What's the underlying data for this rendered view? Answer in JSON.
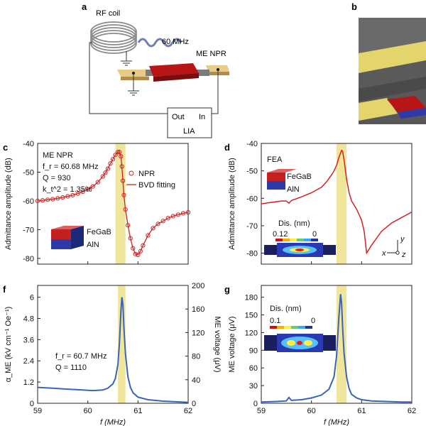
{
  "panel_letters": {
    "a": "a",
    "b": "b",
    "c": "c",
    "d": "d",
    "f": "f",
    "g": "g"
  },
  "schematic_a": {
    "rf_coil": "RF coil",
    "freq": "60 MHz",
    "device": "ME NPR",
    "lia_out": "Out",
    "lia_in": "In",
    "lia": "LIA",
    "colors": {
      "electrode": "#d9b870",
      "resonator": "#b81616",
      "coil": "#999999",
      "wave": "#6f7fb5"
    }
  },
  "panel_b": {
    "colors": {
      "metal": "#e6d86e",
      "substrate": "#555555",
      "red": "#b81616",
      "blue": "#2d3aa8"
    }
  },
  "highlight_color": "#ece08a",
  "chart_data": [
    {
      "panel": "c",
      "type": "line",
      "xlim": [
        59,
        62
      ],
      "ylim": [
        -82,
        -40
      ],
      "xticks": [
        "59",
        "60",
        "61",
        "62"
      ],
      "yticks": [
        "-40",
        "-50",
        "-60",
        "-70",
        "-80"
      ],
      "ylabel": "Admittance amplitude (dB)",
      "highlight": [
        60.55,
        60.75
      ],
      "annotations": [
        "ME NPR",
        "f_r = 60.68 MHz",
        "Q = 930",
        "k_t^2 = 1.35%"
      ],
      "legend": [
        "NPR",
        "BVD fitting"
      ],
      "inset_labels": [
        "FeGaB",
        "AlN"
      ],
      "series": [
        {
          "name": "NPR",
          "marker": "circle",
          "color": "#cc2222",
          "x": [
            59.0,
            59.1,
            59.2,
            59.3,
            59.4,
            59.5,
            59.6,
            59.7,
            59.8,
            59.9,
            60.0,
            60.1,
            60.2,
            60.3,
            60.35,
            60.4,
            60.45,
            60.5,
            60.55,
            60.6,
            60.63,
            60.66,
            60.68,
            60.7,
            60.72,
            60.75,
            60.8,
            60.85,
            60.9,
            60.95,
            61.0,
            61.05,
            61.1,
            61.2,
            61.3,
            61.4,
            61.5,
            61.6,
            61.7,
            61.8,
            61.9,
            62.0
          ],
          "y": [
            -60,
            -59.8,
            -59.6,
            -59.4,
            -59.1,
            -58.8,
            -58.4,
            -58.0,
            -57.5,
            -56.8,
            -56.0,
            -55.0,
            -53.5,
            -51.5,
            -50.2,
            -48.8,
            -47.0,
            -45.5,
            -44.0,
            -43.0,
            -43.0,
            -44.5,
            -48,
            -53,
            -58,
            -63,
            -68.5,
            -73,
            -76.5,
            -78.5,
            -78.8,
            -77.5,
            -75.5,
            -72,
            -69.5,
            -68,
            -67,
            -66,
            -65.3,
            -64.8,
            -64.3,
            -64.0
          ]
        },
        {
          "name": "BVD fitting",
          "color": "#cc2222",
          "x": [
            59.0,
            59.1,
            59.2,
            59.3,
            59.4,
            59.5,
            59.6,
            59.7,
            59.8,
            59.9,
            60.0,
            60.1,
            60.2,
            60.3,
            60.35,
            60.4,
            60.45,
            60.5,
            60.55,
            60.6,
            60.63,
            60.66,
            60.68,
            60.7,
            60.72,
            60.75,
            60.8,
            60.85,
            60.9,
            60.95,
            61.0,
            61.05,
            61.1,
            61.2,
            61.3,
            61.4,
            61.5,
            61.6,
            61.7,
            61.8,
            61.9,
            62.0
          ],
          "y": [
            -60,
            -59.8,
            -59.6,
            -59.4,
            -59.1,
            -58.8,
            -58.4,
            -58.0,
            -57.5,
            -56.8,
            -56.0,
            -55.0,
            -53.5,
            -51.5,
            -50.2,
            -48.8,
            -47.0,
            -45.5,
            -44.0,
            -43.0,
            -43.0,
            -44.5,
            -48,
            -53,
            -58,
            -63,
            -68.5,
            -73,
            -76.5,
            -78.5,
            -78.8,
            -77.5,
            -75.5,
            -72,
            -69.5,
            -68,
            -67,
            -66,
            -65.3,
            -64.8,
            -64.3,
            -64.0
          ]
        }
      ]
    },
    {
      "panel": "d",
      "type": "line",
      "xlim": [
        59,
        62
      ],
      "ylim": [
        -84,
        -40
      ],
      "yticks": [
        "-40",
        "-50",
        "-60",
        "-70",
        "-80"
      ],
      "ylabel": "Admittance amplitude (dB)",
      "highlight": [
        60.5,
        60.7
      ],
      "annotations": [
        "FEA"
      ],
      "inset_labels": [
        "FeGaB",
        "AlN",
        "Dis. (nm)",
        "0.12",
        "0",
        "x",
        "y",
        "z"
      ],
      "series": [
        {
          "name": "FEA",
          "color": "#d42020",
          "x": [
            59.0,
            59.2,
            59.4,
            59.5,
            59.55,
            59.6,
            59.8,
            60.0,
            60.2,
            60.3,
            60.4,
            60.45,
            60.5,
            60.55,
            60.6,
            60.62,
            60.65,
            60.7,
            60.75,
            60.8,
            60.9,
            61.0,
            61.05,
            61.1,
            61.2,
            61.4,
            61.6,
            61.8,
            62.0
          ],
          "y": [
            -62,
            -61.5,
            -61,
            -61,
            -61.8,
            -60.8,
            -59.5,
            -58,
            -56,
            -54,
            -51.5,
            -50,
            -48,
            -45,
            -42.5,
            -42.8,
            -46,
            -53,
            -58,
            -61,
            -64,
            -68,
            -72,
            -80,
            -77,
            -72,
            -69,
            -67,
            -65
          ]
        }
      ]
    },
    {
      "panel": "f",
      "type": "line",
      "xlim": [
        59,
        62
      ],
      "ylim": [
        0,
        6.667
      ],
      "ylim_right": [
        0,
        200
      ],
      "xticks": [
        "59",
        "60",
        "61",
        "62"
      ],
      "yticks": [
        "0",
        "1.2",
        "2.4",
        "3.6",
        "4.8",
        "6"
      ],
      "yticks_right": [
        "0",
        "40",
        "80",
        "120",
        "160",
        "200"
      ],
      "ylabel": "α_ME (kV cm⁻¹ Oe⁻¹)",
      "ylabel_right": "ME voltage (μV)",
      "xlabel": "f (MHz)",
      "highlight": [
        60.6,
        60.75
      ],
      "annotations": [
        "f_r = 60.7 MHz",
        "Q = 1110"
      ],
      "series": [
        {
          "name": "ME",
          "color": "#3b63b8",
          "x": [
            59.0,
            59.3,
            59.6,
            59.9,
            60.1,
            60.3,
            60.4,
            60.5,
            60.55,
            60.6,
            60.63,
            60.66,
            60.68,
            60.7,
            60.72,
            60.75,
            60.8,
            60.85,
            60.9,
            61.0,
            61.2,
            61.5,
            61.8,
            62.0
          ],
          "y": [
            0.9,
            0.85,
            0.8,
            0.75,
            0.72,
            0.75,
            0.85,
            1.1,
            1.4,
            2.2,
            3.4,
            5.2,
            6.0,
            5.6,
            4.3,
            2.8,
            1.5,
            0.9,
            0.6,
            0.35,
            0.2,
            0.12,
            0.08,
            0.05
          ]
        }
      ]
    },
    {
      "panel": "g",
      "type": "line",
      "xlim": [
        59,
        62
      ],
      "ylim": [
        0,
        200
      ],
      "xticks": [
        "59",
        "60",
        "61",
        "62"
      ],
      "yticks": [
        "0",
        "30",
        "60",
        "90",
        "120",
        "150",
        "180"
      ],
      "ylabel": "ME voltage (μV)",
      "xlabel": "f (MHz)",
      "highlight": [
        60.5,
        60.7
      ],
      "inset_labels": [
        "Dis. (nm)",
        "0.1",
        "0"
      ],
      "series": [
        {
          "name": "ME",
          "color": "#3b63b8",
          "x": [
            59.0,
            59.3,
            59.5,
            59.55,
            59.6,
            59.8,
            60.0,
            60.2,
            60.35,
            60.45,
            60.5,
            60.55,
            60.58,
            60.6,
            60.62,
            60.65,
            60.7,
            60.75,
            60.8,
            60.9,
            61.0,
            61.2,
            61.5,
            61.8,
            62.0
          ],
          "y": [
            2,
            3,
            4,
            10,
            5,
            6,
            9,
            14,
            24,
            45,
            80,
            150,
            185,
            170,
            130,
            85,
            45,
            25,
            15,
            9,
            6,
            4,
            3,
            2,
            2
          ]
        }
      ]
    }
  ]
}
